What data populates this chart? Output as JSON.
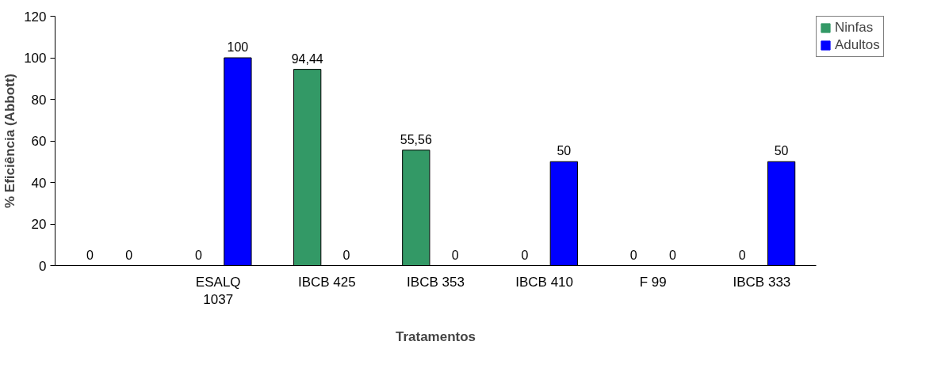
{
  "chart_data": {
    "type": "bar",
    "xlabel": "Tratamentos",
    "ylabel": "% Eficiência (Abbott)",
    "categories": [
      null,
      "ESALQ 1037",
      "IBCB 425",
      "IBCB 353",
      "IBCB 410",
      "F 99",
      "IBCB 333"
    ],
    "series": [
      {
        "name": "Ninfas",
        "color": "#339966",
        "values": [
          0,
          0,
          94.44,
          55.56,
          0,
          0,
          0
        ],
        "value_labels": [
          "0",
          "0",
          "94,44",
          "55,56",
          "0",
          "0",
          "0"
        ]
      },
      {
        "name": "Adultos",
        "color": "#0000ff",
        "values": [
          0,
          100,
          0,
          0,
          50,
          0,
          50
        ],
        "value_labels": [
          "0",
          "100",
          "0",
          "0",
          "50",
          "0",
          "50"
        ]
      }
    ],
    "ylim": [
      0,
      120
    ],
    "yticks": [
      0,
      20,
      40,
      60,
      80,
      100,
      120
    ],
    "grid": false,
    "legend": "top right"
  }
}
